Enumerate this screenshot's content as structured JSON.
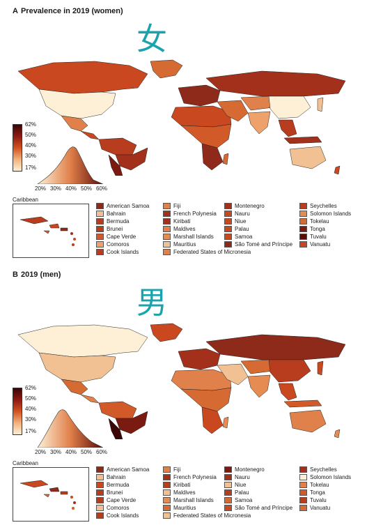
{
  "panel_a": {
    "label": "A",
    "title": "Prevalence in 2019 (women)",
    "overlay_char": "女",
    "scale_ticks": [
      "62%",
      "50%",
      "40%",
      "30%",
      "17%"
    ],
    "x_ticks": [
      "20%",
      "30%",
      "40%",
      "50%",
      "60%"
    ],
    "caribbean_label": "Caribbean",
    "legend": [
      {
        "name": "American Samoa",
        "color": "#8e2a1a"
      },
      {
        "name": "Fiji",
        "color": "#e0804a"
      },
      {
        "name": "Montenegro",
        "color": "#a2301b"
      },
      {
        "name": "Seychelles",
        "color": "#b83d1f"
      },
      {
        "name": "Bahrain",
        "color": "#f1c194"
      },
      {
        "name": "French Polynesia",
        "color": "#a2301b"
      },
      {
        "name": "Nauru",
        "color": "#c9481f"
      },
      {
        "name": "Solomon Islands",
        "color": "#e68c52"
      },
      {
        "name": "Bermuda",
        "color": "#b83d1f"
      },
      {
        "name": "Kiribati",
        "color": "#a2301b"
      },
      {
        "name": "Niue",
        "color": "#c9481f"
      },
      {
        "name": "Tokelau",
        "color": "#d66a33"
      },
      {
        "name": "Brunei",
        "color": "#b83d1f"
      },
      {
        "name": "Maldives",
        "color": "#e0804a"
      },
      {
        "name": "Palau",
        "color": "#c9481f"
      },
      {
        "name": "Tonga",
        "color": "#7a1a10"
      },
      {
        "name": "Cape Verde",
        "color": "#d15a28"
      },
      {
        "name": "Marshall Islands",
        "color": "#e68c52"
      },
      {
        "name": "Samoa",
        "color": "#c9481f"
      },
      {
        "name": "Tuvalu",
        "color": "#5a0d08"
      },
      {
        "name": "Comoros",
        "color": "#eea16b"
      },
      {
        "name": "Mauritius",
        "color": "#f1c194"
      },
      {
        "name": "São Tomé and Príncipe",
        "color": "#8e2a1a"
      },
      {
        "name": "Vanuatu",
        "color": "#c9481f"
      },
      {
        "name": "Cook Islands",
        "color": "#b83d1f"
      },
      {
        "name": "Federated States of Micronesia",
        "color": "#e0804a"
      }
    ]
  },
  "panel_b": {
    "label": "B",
    "title": "2019 (men)",
    "overlay_char": "男",
    "scale_ticks": [
      "62%",
      "50%",
      "40%",
      "30%",
      "17%"
    ],
    "x_ticks": [
      "20%",
      "30%",
      "40%",
      "50%",
      "60%"
    ],
    "caribbean_label": "Caribbean",
    "legend": [
      {
        "name": "American Samoa",
        "color": "#8e2a1a"
      },
      {
        "name": "Fiji",
        "color": "#e0804a"
      },
      {
        "name": "Montenegro",
        "color": "#7a1a10"
      },
      {
        "name": "Seychelles",
        "color": "#a2301b"
      },
      {
        "name": "Bahrain",
        "color": "#f1c194"
      },
      {
        "name": "French Polynesia",
        "color": "#a2301b"
      },
      {
        "name": "Nauru",
        "color": "#a2301b"
      },
      {
        "name": "Solomon Islands",
        "color": "#fdf0d6"
      },
      {
        "name": "Bermuda",
        "color": "#c9481f"
      },
      {
        "name": "Kiribati",
        "color": "#b83d1f"
      },
      {
        "name": "Niue",
        "color": "#f1c194"
      },
      {
        "name": "Tokelau",
        "color": "#e0804a"
      },
      {
        "name": "Brunei",
        "color": "#b83d1f"
      },
      {
        "name": "Maldives",
        "color": "#f1c194"
      },
      {
        "name": "Palau",
        "color": "#b83d1f"
      },
      {
        "name": "Tonga",
        "color": "#d15a28"
      },
      {
        "name": "Cape Verde",
        "color": "#b83d1f"
      },
      {
        "name": "Marshall Islands",
        "color": "#e68c52"
      },
      {
        "name": "Samoa",
        "color": "#d66a33"
      },
      {
        "name": "Tuvalu",
        "color": "#b83d1f"
      },
      {
        "name": "Comoros",
        "color": "#f1c194"
      },
      {
        "name": "Mauritius",
        "color": "#d66a33"
      },
      {
        "name": "São Tomé and Príncipe",
        "color": "#c9481f"
      },
      {
        "name": "Vanuatu",
        "color": "#d66a33"
      },
      {
        "name": "Cook Islands",
        "color": "#b83d1f"
      },
      {
        "name": "Federated States of Micronesia",
        "color": "#f1c194"
      }
    ]
  }
}
